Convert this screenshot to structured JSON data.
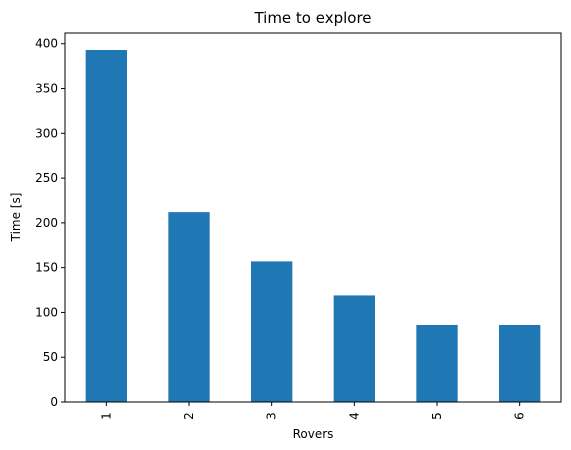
{
  "chart_data": {
    "type": "bar",
    "title": "Time to explore",
    "xlabel": "Rovers",
    "ylabel": "Time [s]",
    "categories": [
      "1",
      "2",
      "3",
      "4",
      "5",
      "6"
    ],
    "values": [
      393,
      212,
      157,
      119,
      86,
      86
    ],
    "ylim": [
      0,
      412
    ],
    "yticks": [
      0,
      50,
      100,
      150,
      200,
      250,
      300,
      350,
      400
    ],
    "bar_color": "#1f77b4",
    "grid": false,
    "legend": "none"
  }
}
